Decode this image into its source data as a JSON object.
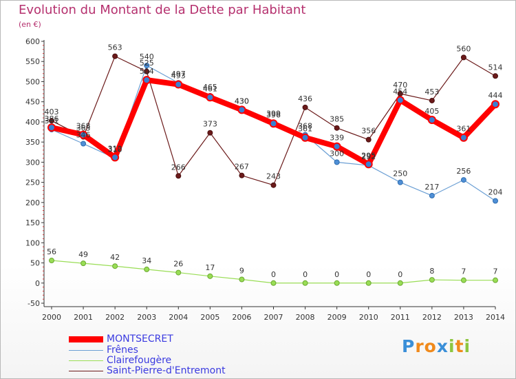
{
  "chart_data": {
    "type": "line",
    "title": "Evolution du Montant de la Dette par Habitant",
    "subtitle": "(en €)",
    "x": [
      "2000",
      "2001",
      "2002",
      "2003",
      "2004",
      "2005",
      "2006",
      "2007",
      "2008",
      "2009",
      "2010",
      "2011",
      "2012",
      "2013",
      "2014"
    ],
    "ylim": [
      -50,
      600
    ],
    "yticks": [
      -50,
      0,
      50,
      100,
      150,
      200,
      250,
      300,
      350,
      400,
      450,
      500,
      550,
      600
    ],
    "grid": false,
    "legend_position": "bottom-left",
    "series": [
      {
        "name": "MONTSECRET",
        "color": "#ff0000",
        "values": [
          386,
          368,
          312,
          504,
          493,
          461,
          430,
          396,
          361,
          339,
          295,
          454,
          405,
          361,
          444
        ],
        "labels": [
          "386",
          "368",
          "312",
          "504",
          "493",
          "461",
          "430",
          "396",
          "361",
          "339",
          "295",
          "454",
          "405",
          "361",
          "444"
        ]
      },
      {
        "name": "Frênes",
        "color": "#6b9fd4",
        "values": [
          381,
          346,
          310,
          540,
          497,
          465,
          430,
          399,
          368,
          300,
          292,
          250,
          217,
          256,
          204
        ],
        "labels": [
          "381",
          "346",
          "310",
          "540",
          "497",
          "465",
          "430",
          "399",
          "368",
          "300",
          "292",
          "250",
          "217",
          "256",
          "204"
        ]
      },
      {
        "name": "Clairefougère",
        "color": "#99dd55",
        "values": [
          56,
          49,
          42,
          34,
          26,
          17,
          9,
          0,
          0,
          0,
          0,
          0,
          8,
          7,
          7
        ],
        "labels": [
          "56",
          "49",
          "42",
          "34",
          "26",
          "17",
          "9",
          "0",
          "0",
          "0",
          "0",
          "0",
          "8",
          "7",
          "7"
        ]
      },
      {
        "name": "Saint-Pierre-d'Entremont",
        "color": "#6b1a1a",
        "values": [
          403,
          363,
          563,
          525,
          266,
          373,
          267,
          243,
          436,
          385,
          356,
          470,
          453,
          560,
          514
        ],
        "labels": [
          "403",
          "363",
          "563",
          "525",
          "266",
          "373",
          "267",
          "243",
          "436",
          "385",
          "356",
          "470",
          "453",
          "560",
          "514"
        ]
      }
    ]
  },
  "logo": {
    "text": "Proxiti",
    "letters": [
      "P",
      "r",
      "o",
      "x",
      "i",
      "t",
      "i"
    ],
    "colors": [
      "#3a8fd8",
      "#f08a1c",
      "#f08a1c",
      "#3a8fd8",
      "#8dc63f",
      "#f08a1c",
      "#8dc63f"
    ]
  }
}
